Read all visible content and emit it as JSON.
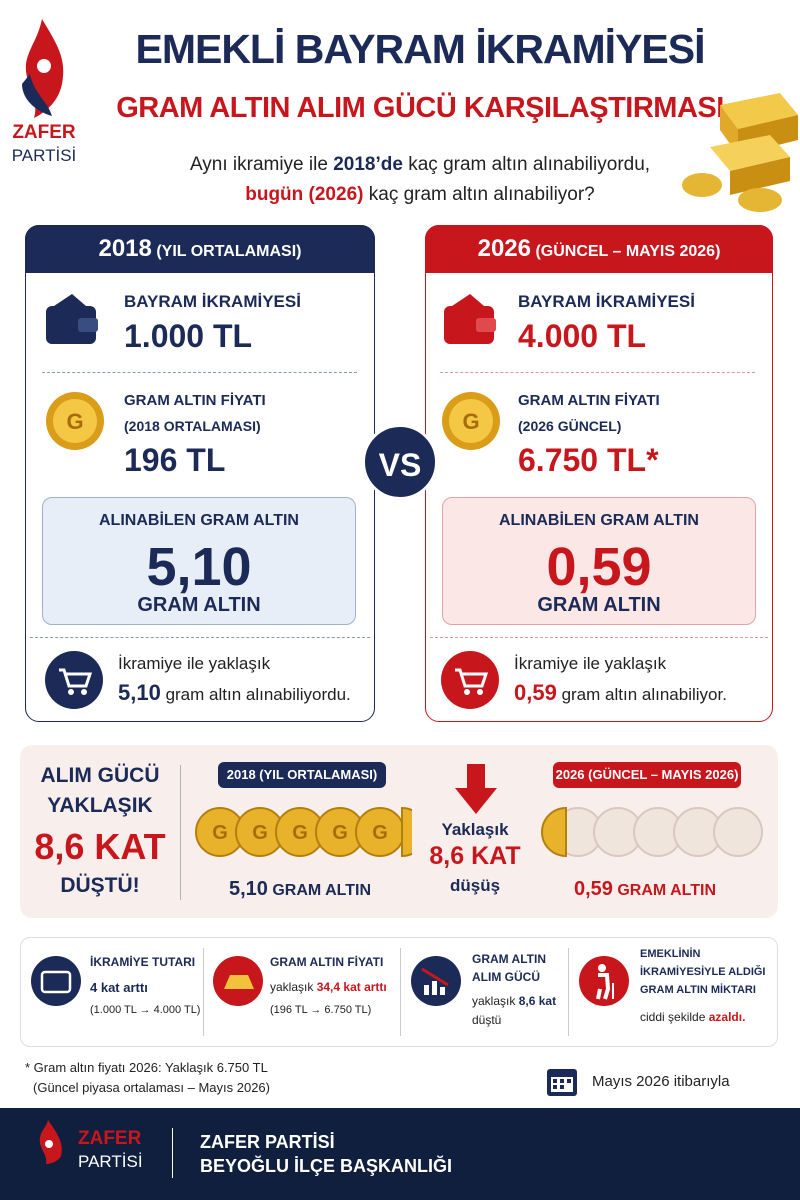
{
  "header": {
    "logo_top": "ZAFER",
    "logo_bottom": "PARTİSİ",
    "title": "EMEKLİ BAYRAM İKRAMİYESİ",
    "subtitle": "GRAM ALTIN ALIM GÜCÜ KARŞILAŞTIRMASI",
    "question_1a": "Aynı ikramiye ile",
    "question_1b": "2018’de",
    "question_1c": "kaç gram altın alınabiliyordu,",
    "question_2a": "bugün (2026)",
    "question_2b": "kaç gram altın alınabiliyor?"
  },
  "panels": [
    {
      "year": "2018",
      "period": "(YIL ORTALAMASI)",
      "bonus_label": "BAYRAM İKRAMİYESİ",
      "bonus_value": "1.000 TL",
      "price_label": "GRAM ALTIN FİYATI",
      "price_note": "(2018 ORTALAMASI)",
      "price_value": "196 TL",
      "result_label": "ALINABİLEN GRAM ALTIN",
      "result_value": "5,10",
      "result_unit": "GRAM ALTIN",
      "summary_1": "İkramiye ile yaklaşık",
      "summary_value": "5,10",
      "summary_2": "gram altın alınabiliyordu."
    },
    {
      "year": "2026",
      "period": "(GÜNCEL – MAYIS 2026)",
      "bonus_label": "BAYRAM İKRAMİYESİ",
      "bonus_value": "4.000 TL",
      "price_label": "GRAM ALTIN FİYATI",
      "price_note": "(2026 GÜNCEL)",
      "price_value": "6.750 TL*",
      "result_label": "ALINABİLEN GRAM ALTIN",
      "result_value": "0,59",
      "result_unit": "GRAM ALTIN",
      "summary_1": "İkramiye ile yaklaşık",
      "summary_value": "0,59",
      "summary_2": "gram altın alınabiliyor."
    }
  ],
  "vs": "VS",
  "comparison": {
    "left_1": "ALIM GÜCÜ",
    "left_2": "YAKLAŞIK",
    "left_3": "8,6 KAT",
    "left_4": "DÜŞTÜ!",
    "badge_2018": "2018 (YIL ORTALAMASI)",
    "value_2018": "5,10",
    "unit_2018": "GRAM ALTIN",
    "middle_1": "Yaklaşık",
    "middle_2": "8,6 KAT",
    "middle_3": "düşüş",
    "badge_2026": "2026 (GÜNCEL – MAYIS 2026)",
    "value_2026": "0,59",
    "unit_2026": "GRAM ALTIN"
  },
  "facts": [
    {
      "title": "İKRAMİYE TUTARI",
      "line_1": "4 kat arttı",
      "line_2": "(1.000 TL → 4.000 TL)"
    },
    {
      "title": "GRAM ALTIN FİYATI",
      "line_1a": "yaklaşık",
      "line_1b": "34,4 kat arttı",
      "line_2": "(196 TL → 6.750 TL)"
    },
    {
      "title_1": "GRAM ALTIN",
      "title_2": "ALIM GÜCÜ",
      "line_1a": "yaklaşık",
      "line_1b": "8,6 kat",
      "line_2": "düştü"
    },
    {
      "title_1": "EMEKLİNİN",
      "title_2": "İKRAMİYESİYLE ALDIĞI",
      "title_3": "GRAM ALTIN MİKTARI",
      "line_1a": "ciddi şekilde",
      "line_1b": "azaldı."
    }
  ],
  "footnote": [
    "* Gram altın fiyatı 2026: Yaklaşık 6.750 TL",
    "(Güncel piyasa ortalaması – Mayıs 2026)"
  ],
  "date_note": "Mayıs 2026 itibarıyla",
  "footer": {
    "logo_top": "ZAFER",
    "logo_bottom": "PARTİSİ",
    "line_1": "ZAFER PARTİSİ",
    "line_2": "BEYOĞLU İLÇE BAŞKANLIĞI"
  }
}
